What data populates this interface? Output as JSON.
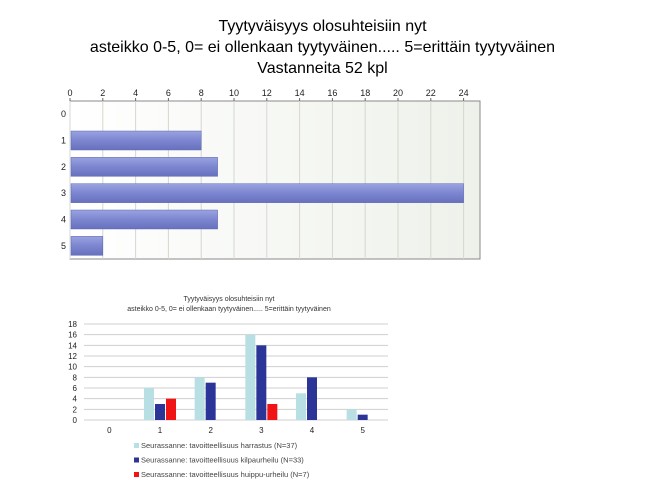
{
  "chart_data": [
    {
      "type": "bar",
      "orientation": "horizontal",
      "title": [
        "Tyytyväisyys olosuhteisiin nyt",
        "asteikko 0-5, 0= ei ollenkaan tyytyväinen..... 5=erittäin tyytyväinen",
        "Vastanneita 52 kpl"
      ],
      "categories": [
        "0",
        "1",
        "2",
        "3",
        "4",
        "5"
      ],
      "values": [
        0,
        8,
        9,
        24,
        9,
        2
      ],
      "xlim": [
        0,
        25
      ],
      "xticks": [
        "0",
        "2",
        "4",
        "6",
        "8",
        "10",
        "12",
        "14",
        "16",
        "18",
        "20",
        "22",
        "24"
      ],
      "bar_color": "#7c86d0",
      "background": "#eef1ea",
      "grid": true
    },
    {
      "type": "bar",
      "orientation": "vertical",
      "title": [
        "Tyytyväisyys olosuhteisiin nyt",
        "asteikko 0-5, 0= ei ollenkaan tyytyväinen..... 5=erittäin tyytyväinen"
      ],
      "categories": [
        "0",
        "1",
        "2",
        "3",
        "4",
        "5"
      ],
      "yticks": [
        "0",
        "2",
        "4",
        "6",
        "8",
        "10",
        "12",
        "14",
        "16",
        "18"
      ],
      "ylim": [
        0,
        18
      ],
      "grid": true,
      "legend_position": "bottom",
      "series": [
        {
          "name": "Seurassanne: tavoitteellisuus harrastus (N=37)",
          "values": [
            0,
            6,
            8,
            16,
            5,
            2
          ],
          "color": "#b8dfe3"
        },
        {
          "name": "Seurassanne: tavoitteellisuus kilpaurheilu (N=33)",
          "values": [
            0,
            3,
            7,
            14,
            8,
            1
          ],
          "color": "#2b3597"
        },
        {
          "name": "Seurassanne: tavoitteellisuus huippu-urheilu (N=7)",
          "values": [
            0,
            4,
            0,
            3,
            0,
            0
          ],
          "color": "#f01414"
        }
      ]
    }
  ]
}
